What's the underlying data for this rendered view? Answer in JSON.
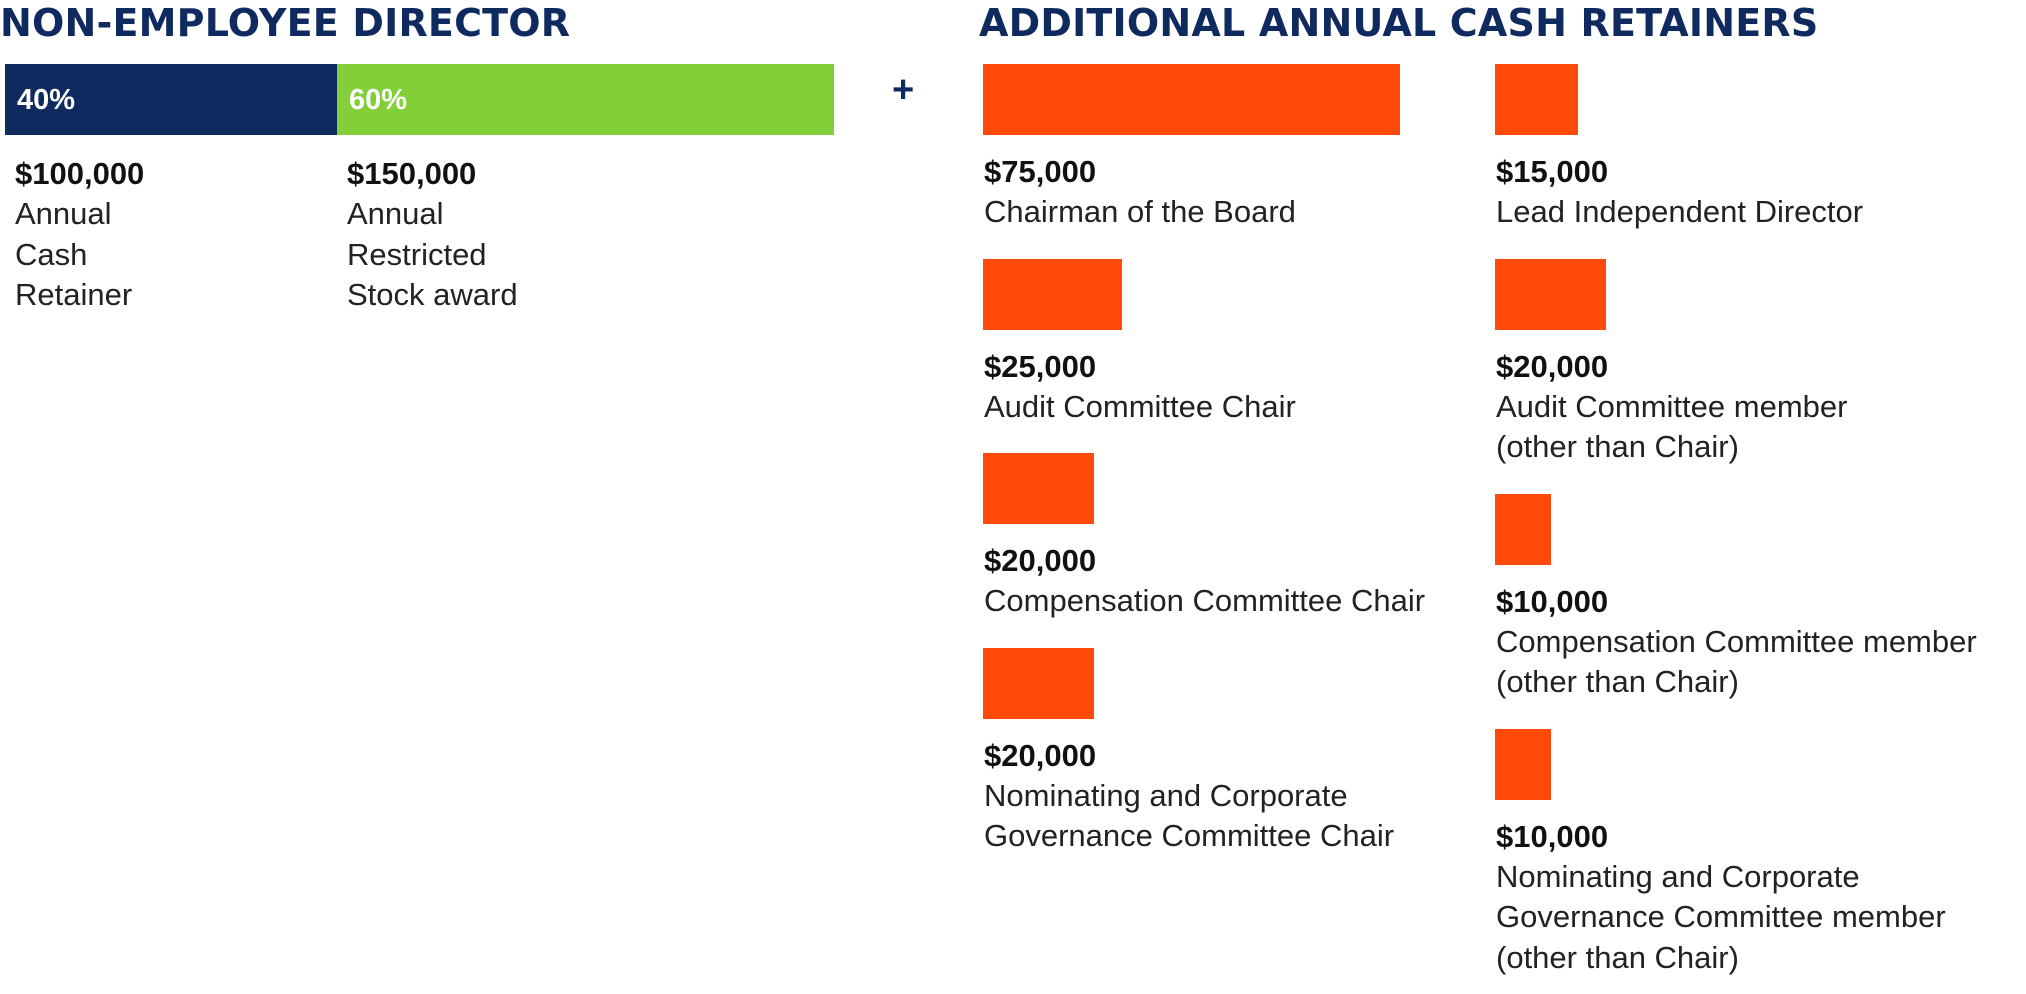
{
  "headings": {
    "left": "NON-EMPLOYEE DIRECTOR",
    "right": "ADDITIONAL ANNUAL CASH RETAINERS"
  },
  "plus_sign": "+",
  "colors": {
    "heading": "#0f2a5f",
    "navy": "#0f2a5f",
    "green": "#82cf3a",
    "orange": "#ff4a0a"
  },
  "chart_data": [
    {
      "type": "bar",
      "title": "NON-EMPLOYEE DIRECTOR",
      "orientation": "horizontal-stacked",
      "segments": [
        {
          "percent_label": "40%",
          "share": 40,
          "value": 100000,
          "value_label": "$100,000",
          "label": "Annual\nCash\nRetainer",
          "color": "#0f2a5f"
        },
        {
          "percent_label": "60%",
          "share": 60,
          "value": 150000,
          "value_label": "$150,000",
          "label": "Annual\nRestricted\nStock award",
          "color": "#82cf3a"
        }
      ]
    },
    {
      "type": "bar",
      "title": "ADDITIONAL ANNUAL CASH RETAINERS",
      "orientation": "horizontal",
      "scale_max": 75000,
      "columns": [
        [
          {
            "value": 75000,
            "value_label": "$75,000",
            "label": "Chairman of the Board"
          },
          {
            "value": 25000,
            "value_label": "$25,000",
            "label": "Audit Committee Chair"
          },
          {
            "value": 20000,
            "value_label": "$20,000",
            "label": "Compensation Committee Chair"
          },
          {
            "value": 20000,
            "value_label": "$20,000",
            "label": "Nominating and Corporate\nGovernance Committee Chair"
          }
        ],
        [
          {
            "value": 15000,
            "value_label": "$15,000",
            "label": "Lead Independent Director"
          },
          {
            "value": 20000,
            "value_label": "$20,000",
            "label": "Audit Committee member\n(other than Chair)"
          },
          {
            "value": 10000,
            "value_label": "$10,000",
            "label": "Compensation Committee member\n(other than Chair)"
          },
          {
            "value": 10000,
            "value_label": "$10,000",
            "label": "Nominating and Corporate\nGovernance Committee member\n(other than Chair)"
          }
        ]
      ]
    }
  ]
}
